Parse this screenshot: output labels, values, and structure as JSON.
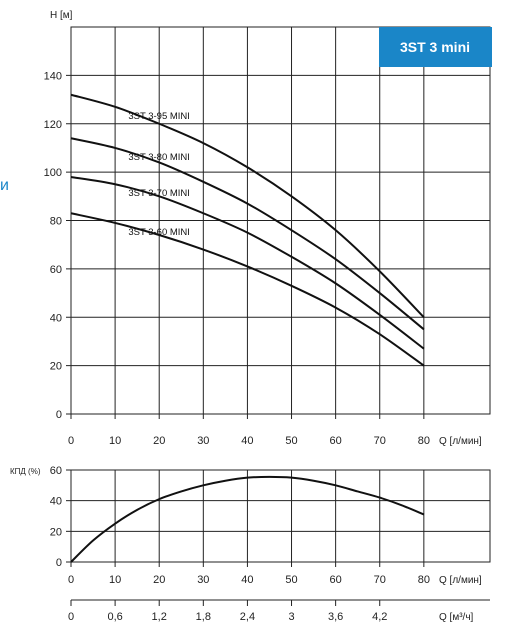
{
  "side_fragment": "и",
  "chart_data": [
    {
      "type": "line",
      "badge": "3ST 3 mini",
      "ylabel": "H [м]",
      "xlabel": "Q [л/мин]",
      "x_ticks": [
        0,
        10,
        20,
        30,
        40,
        50,
        60,
        70,
        80
      ],
      "y_ticks": [
        0,
        20,
        40,
        60,
        80,
        100,
        120,
        140
      ],
      "xlim": [
        0,
        95
      ],
      "ylim": [
        0,
        160
      ],
      "grid": true,
      "series": [
        {
          "name": "3ST 3-95 MINI",
          "x": [
            0,
            10,
            20,
            30,
            40,
            50,
            60,
            70,
            80
          ],
          "y": [
            132,
            127,
            120,
            112,
            102,
            90,
            76,
            59,
            40
          ]
        },
        {
          "name": "3ST 3-80 MINI",
          "x": [
            0,
            10,
            20,
            30,
            40,
            50,
            60,
            70,
            80
          ],
          "y": [
            114,
            110,
            104,
            96,
            87,
            76,
            64,
            50,
            35
          ]
        },
        {
          "name": "3ST 3-70 MINI",
          "x": [
            0,
            10,
            20,
            30,
            40,
            50,
            60,
            70,
            80
          ],
          "y": [
            98,
            95,
            90,
            83,
            75,
            65,
            54,
            41,
            27
          ]
        },
        {
          "name": "3ST 3-60 MINI",
          "x": [
            0,
            10,
            20,
            30,
            40,
            50,
            60,
            70,
            80
          ],
          "y": [
            83,
            79,
            74,
            68,
            61,
            53,
            44,
            33,
            20
          ]
        }
      ]
    },
    {
      "type": "line",
      "ylabel": "КПД (%)",
      "xlabel": "Q [л/мин]",
      "x_ticks": [
        0,
        10,
        20,
        30,
        40,
        50,
        60,
        70,
        80
      ],
      "y_ticks": [
        0,
        20,
        40,
        60
      ],
      "xlim": [
        0,
        95
      ],
      "ylim": [
        0,
        60
      ],
      "grid": true,
      "series": [
        {
          "x": [
            0,
            5,
            10,
            15,
            20,
            25,
            30,
            35,
            40,
            45,
            50,
            55,
            60,
            65,
            70,
            75,
            80
          ],
          "y": [
            0,
            14,
            25,
            34,
            41,
            46,
            50,
            53,
            55,
            55.5,
            55,
            53,
            50,
            46,
            42,
            37,
            31
          ]
        }
      ]
    },
    {
      "type": "axis",
      "xlabel": "Q [м³/ч]",
      "x_ticks": [
        "0",
        "0,6",
        "1,2",
        "1,8",
        "2,4",
        "3",
        "3,6",
        "4,2"
      ]
    }
  ]
}
